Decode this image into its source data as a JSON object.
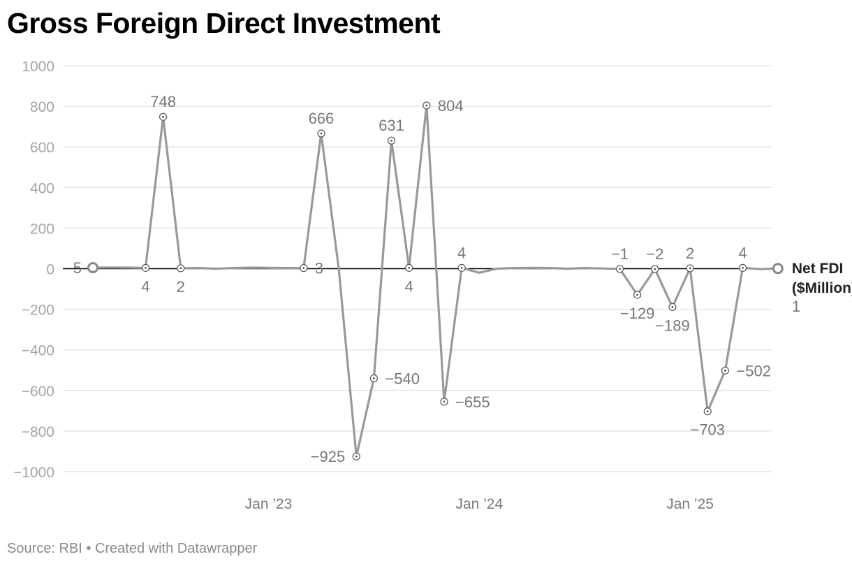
{
  "title": "Gross Foreign Direct Investment",
  "source": "Source: RBI • Created with Datawrapper",
  "chart_data": {
    "type": "line",
    "title": "Gross Foreign Direct Investment",
    "xlabel": "",
    "ylabel": "",
    "ylim": [
      -1000,
      1000
    ],
    "y_ticks": [
      1000,
      800,
      600,
      400,
      200,
      0,
      -200,
      -400,
      -600,
      -800,
      -1000
    ],
    "y_tick_labels": [
      "1000",
      "800",
      "600",
      "400",
      "200",
      "0",
      "−200",
      "−400",
      "−600",
      "−800",
      "−1000"
    ],
    "x_tick_labels": [
      {
        "label": "Jan ’23",
        "x": "2023-01"
      },
      {
        "label": "Jan ’24",
        "x": "2024-01"
      },
      {
        "label": "Jan ’25",
        "x": "2025-01"
      }
    ],
    "grid": true,
    "legend": "none",
    "line_color": "#999999",
    "zero_line_color": "#000000",
    "series": [
      {
        "name": "Net FDI ($Million)",
        "label_lines": [
          "Net FDI",
          "($Million)"
        ],
        "last_value_label": "1",
        "points": [
          {
            "x": "2022-03",
            "y": 5,
            "label": "5",
            "label_pos": "left",
            "marker": "big"
          },
          {
            "x": "2022-04",
            "y": 6
          },
          {
            "x": "2022-05",
            "y": 5
          },
          {
            "x": "2022-06",
            "y": 4,
            "label": "4",
            "label_pos": "below",
            "marker": "small"
          },
          {
            "x": "2022-07",
            "y": 748,
            "label": "748",
            "label_pos": "above",
            "marker": "small"
          },
          {
            "x": "2022-08",
            "y": 2,
            "label": "2",
            "label_pos": "below",
            "marker": "small"
          },
          {
            "x": "2022-09",
            "y": 3
          },
          {
            "x": "2022-10",
            "y": 0
          },
          {
            "x": "2022-11",
            "y": 3
          },
          {
            "x": "2022-12",
            "y": 5
          },
          {
            "x": "2023-01",
            "y": 4
          },
          {
            "x": "2023-02",
            "y": 3
          },
          {
            "x": "2023-03",
            "y": 3,
            "label": "3",
            "label_pos": "right",
            "marker": "small"
          },
          {
            "x": "2023-04",
            "y": 666,
            "label": "666",
            "label_pos": "above",
            "marker": "small"
          },
          {
            "x": "2023-05",
            "y": 0
          },
          {
            "x": "2023-06",
            "y": -925,
            "label": "−925",
            "label_pos": "left",
            "marker": "small"
          },
          {
            "x": "2023-07",
            "y": -540,
            "label": "−540",
            "label_pos": "right",
            "marker": "small"
          },
          {
            "x": "2023-08",
            "y": 631,
            "label": "631",
            "label_pos": "above",
            "marker": "small"
          },
          {
            "x": "2023-09",
            "y": 4,
            "label": "4",
            "label_pos": "below",
            "marker": "small"
          },
          {
            "x": "2023-10",
            "y": 804,
            "label": "804",
            "label_pos": "right",
            "marker": "small"
          },
          {
            "x": "2023-11",
            "y": -655,
            "label": "−655",
            "label_pos": "right",
            "marker": "small"
          },
          {
            "x": "2023-12",
            "y": 4,
            "label": "4",
            "label_pos": "above",
            "marker": "small"
          },
          {
            "x": "2024-01",
            "y": -20
          },
          {
            "x": "2024-02",
            "y": 0
          },
          {
            "x": "2024-03",
            "y": 3
          },
          {
            "x": "2024-04",
            "y": 4
          },
          {
            "x": "2024-05",
            "y": 3
          },
          {
            "x": "2024-06",
            "y": 0
          },
          {
            "x": "2024-07",
            "y": 3
          },
          {
            "x": "2024-08",
            "y": 1
          },
          {
            "x": "2024-09",
            "y": -1,
            "label": "−1",
            "label_pos": "above",
            "marker": "small"
          },
          {
            "x": "2024-10",
            "y": -129,
            "label": "−129",
            "label_pos": "below",
            "marker": "small"
          },
          {
            "x": "2024-11",
            "y": -2,
            "label": "−2",
            "label_pos": "above",
            "marker": "small"
          },
          {
            "x": "2024-12",
            "y": -189,
            "label": "−189",
            "label_pos": "below",
            "marker": "small"
          },
          {
            "x": "2025-01",
            "y": 2,
            "label": "2",
            "label_pos": "above",
            "marker": "small"
          },
          {
            "x": "2025-02",
            "y": -703,
            "label": "−703",
            "label_pos": "below",
            "marker": "small"
          },
          {
            "x": "2025-03",
            "y": -502,
            "label": "−502",
            "label_pos": "right",
            "marker": "small"
          },
          {
            "x": "2025-04",
            "y": 4,
            "label": "4",
            "label_pos": "above",
            "marker": "small"
          },
          {
            "x": "2025-05",
            "y": -2
          },
          {
            "x": "2025-06",
            "y": 1,
            "marker": "big"
          }
        ]
      }
    ]
  }
}
